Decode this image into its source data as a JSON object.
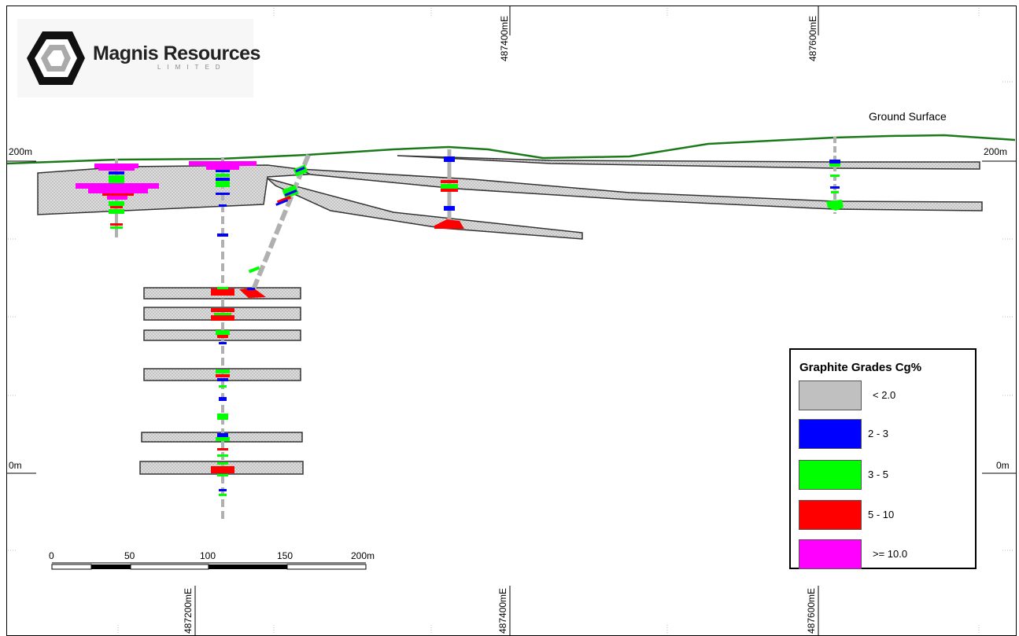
{
  "logo": {
    "name": "Magnis Resources",
    "subtitle": "LIMITED"
  },
  "ground_label": "Ground Surface",
  "elevation_labels": {
    "top_left": "200m",
    "top_right": "200m",
    "bottom_left": "0m",
    "bottom_right": "0m"
  },
  "easting_labels": {
    "top": [
      "487400mE",
      "487600mE"
    ],
    "bottom": [
      "487200mE",
      "487400mE",
      "487600mE"
    ]
  },
  "scale_bar": {
    "ticks": [
      "0",
      "50",
      "100",
      "150",
      "200m"
    ]
  },
  "legend": {
    "title": "Graphite Grades Cg%",
    "items": [
      {
        "label": "< 2.0",
        "color": "#c0c0c0"
      },
      {
        "label": "2 - 3",
        "color": "#0000ff"
      },
      {
        "label": "3 - 5",
        "color": "#00ff00"
      },
      {
        "label": "5 - 10",
        "color": "#ff0000"
      },
      {
        "label": ">= 10.0",
        "color": "#ff00ff"
      }
    ]
  },
  "colors": {
    "ground_line": "#1a7a1a",
    "lens_fill": "#d6d6d6",
    "lens_edge": "#333333"
  }
}
